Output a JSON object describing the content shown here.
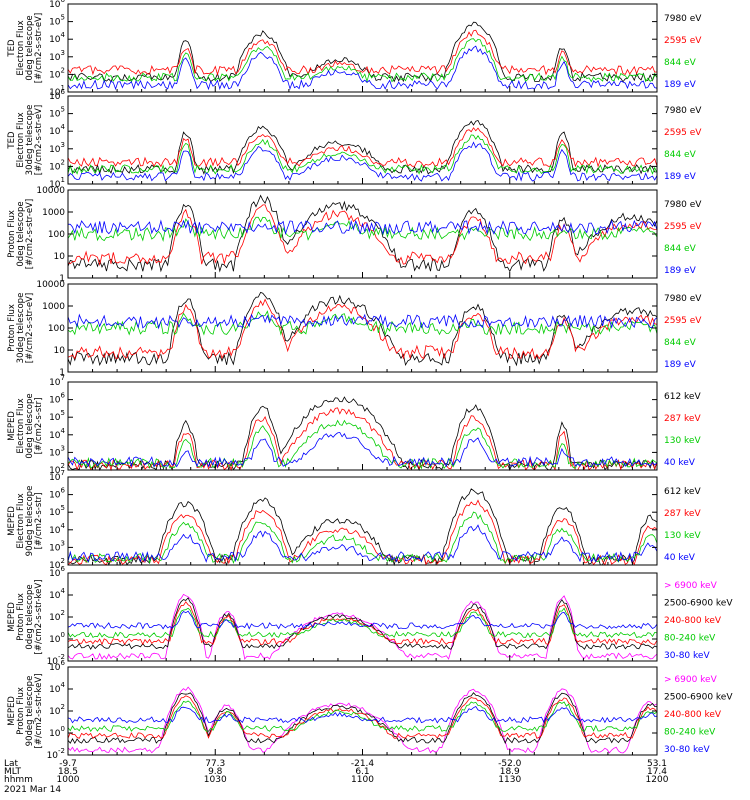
{
  "chart_data": [
    {
      "type": "line",
      "ylabel": "TED\nElectron Flux\n0deg telescope\n[#/cm2-s-str-eV]",
      "yscale": "log",
      "ytick_labels": [
        "10^1",
        "10^2",
        "10^3",
        "10^4",
        "10^5",
        "10^6"
      ],
      "ylim_exp": [
        0,
        6
      ],
      "series": [
        {
          "name": "7980 eV",
          "color": "#000000",
          "level": 1.0
        },
        {
          "name": "2595 eV",
          "color": "#ff0000",
          "level": 1.5
        },
        {
          "name": "844 eV",
          "color": "#00cc00",
          "level": 1.0
        },
        {
          "name": "189 eV",
          "color": "#0000ff",
          "level": 0.5
        }
      ],
      "features": [
        {
          "x": 0.2,
          "w": 0.012,
          "peak": 3.5
        },
        {
          "x": 0.33,
          "w": 0.03,
          "peak": 4.0
        },
        {
          "x": 0.46,
          "w": 0.06,
          "peak": 2.2
        },
        {
          "x": 0.69,
          "w": 0.03,
          "peak": 4.6
        },
        {
          "x": 0.84,
          "w": 0.012,
          "peak": 3.0
        }
      ]
    },
    {
      "type": "line",
      "ylabel": "TED\nElectron Flux\n30deg telescope\n[#/cm2-s-str-eV]",
      "yscale": "log",
      "ytick_labels": [
        "10^1",
        "10^2",
        "10^3",
        "10^4",
        "10^5",
        "10^6"
      ],
      "ylim_exp": [
        0,
        6
      ],
      "series": [
        {
          "name": "7980 eV",
          "color": "#000000",
          "level": 1.0
        },
        {
          "name": "2595 eV",
          "color": "#ff0000",
          "level": 1.5
        },
        {
          "name": "844 eV",
          "color": "#00cc00",
          "level": 1.0
        },
        {
          "name": "189 eV",
          "color": "#0000ff",
          "level": 0.5
        }
      ],
      "features": [
        {
          "x": 0.2,
          "w": 0.012,
          "peak": 3.5
        },
        {
          "x": 0.33,
          "w": 0.03,
          "peak": 3.8
        },
        {
          "x": 0.46,
          "w": 0.065,
          "peak": 2.8
        },
        {
          "x": 0.69,
          "w": 0.03,
          "peak": 4.2
        },
        {
          "x": 0.84,
          "w": 0.012,
          "peak": 3.4
        }
      ]
    },
    {
      "type": "line",
      "ylabel": "Proton Flux\n0deg telescope\n[#/cm2-s-str-eV]",
      "yscale": "log",
      "ytick_labels": [
        "1",
        "10",
        "100",
        "1000",
        "10000"
      ],
      "ylim_exp": [
        0,
        4
      ],
      "series": [
        {
          "name": "7980 eV",
          "color": "#000000",
          "level": 0.6
        },
        {
          "name": "2595 eV",
          "color": "#ff0000",
          "level": 0.9
        },
        {
          "name": "844 eV",
          "color": "#00cc00",
          "level": 2.0
        },
        {
          "name": "189 eV",
          "color": "#0000ff",
          "level": 2.3
        }
      ],
      "features": [
        {
          "x": 0.2,
          "w": 0.02,
          "peak": 3.3
        },
        {
          "x": 0.33,
          "w": 0.03,
          "peak": 3.6
        },
        {
          "x": 0.46,
          "w": 0.07,
          "peak": 3.3
        },
        {
          "x": 0.69,
          "w": 0.03,
          "peak": 3.0
        },
        {
          "x": 0.84,
          "w": 0.02,
          "peak": 2.6
        },
        {
          "x": 0.96,
          "w": 0.08,
          "peak": 2.8
        }
      ]
    },
    {
      "type": "line",
      "ylabel": "Proton Flux\n30deg telescope\n[#/cm2-s-str-eV]",
      "yscale": "log",
      "ytick_labels": [
        "1",
        "10",
        "100",
        "1000",
        "10000"
      ],
      "ylim_exp": [
        0,
        4
      ],
      "series": [
        {
          "name": "7980 eV",
          "color": "#000000",
          "level": 0.6
        },
        {
          "name": "2595 eV",
          "color": "#ff0000",
          "level": 0.9
        },
        {
          "name": "844 eV",
          "color": "#00cc00",
          "level": 2.0
        },
        {
          "name": "189 eV",
          "color": "#0000ff",
          "level": 2.3
        }
      ],
      "features": [
        {
          "x": 0.2,
          "w": 0.02,
          "peak": 3.3
        },
        {
          "x": 0.33,
          "w": 0.03,
          "peak": 3.6
        },
        {
          "x": 0.46,
          "w": 0.07,
          "peak": 3.3
        },
        {
          "x": 0.69,
          "w": 0.03,
          "peak": 3.0
        },
        {
          "x": 0.84,
          "w": 0.02,
          "peak": 2.6
        },
        {
          "x": 0.96,
          "w": 0.08,
          "peak": 2.8
        }
      ]
    },
    {
      "type": "line",
      "ylabel": "MEPED\nElectron Flux\n0deg telescope\n[#/cm2-s-str]",
      "yscale": "log",
      "ytick_labels": [
        "10^2",
        "10^3",
        "10^4",
        "10^5",
        "10^6",
        "10^7"
      ],
      "ylim_exp": [
        1.7,
        7
      ],
      "series": [
        {
          "name": "612 keV",
          "color": "#000000",
          "level": 2.0
        },
        {
          "name": "287 keV",
          "color": "#ff0000",
          "level": 2.0
        },
        {
          "name": "130 keV",
          "color": "#00cc00",
          "level": 2.1
        },
        {
          "name": "40 keV",
          "color": "#0000ff",
          "level": 2.2
        }
      ],
      "features": [
        {
          "x": 0.2,
          "w": 0.015,
          "peak": 4.5
        },
        {
          "x": 0.33,
          "w": 0.02,
          "peak": 5.5
        },
        {
          "x": 0.46,
          "w": 0.06,
          "peak": 6.0
        },
        {
          "x": 0.69,
          "w": 0.025,
          "peak": 5.5
        },
        {
          "x": 0.84,
          "w": 0.01,
          "peak": 4.5
        }
      ]
    },
    {
      "type": "line",
      "ylabel": "MEPED\nElectron Flux\n90deg telescope\n[#/cm2-s-str]",
      "yscale": "log",
      "ytick_labels": [
        "10^2",
        "10^3",
        "10^4",
        "10^5",
        "10^6",
        "10^7"
      ],
      "ylim_exp": [
        1.7,
        7
      ],
      "series": [
        {
          "name": "612 keV",
          "color": "#000000",
          "level": 2.0
        },
        {
          "name": "287 keV",
          "color": "#ff0000",
          "level": 2.0
        },
        {
          "name": "130 keV",
          "color": "#00cc00",
          "level": 2.1
        },
        {
          "name": "40 keV",
          "color": "#0000ff",
          "level": 2.2
        }
      ],
      "features": [
        {
          "x": 0.2,
          "w": 0.03,
          "peak": 5.4
        },
        {
          "x": 0.33,
          "w": 0.03,
          "peak": 5.6
        },
        {
          "x": 0.46,
          "w": 0.06,
          "peak": 4.4
        },
        {
          "x": 0.69,
          "w": 0.03,
          "peak": 6.2
        },
        {
          "x": 0.84,
          "w": 0.025,
          "peak": 5.1
        },
        {
          "x": 0.99,
          "w": 0.02,
          "peak": 4.6
        }
      ]
    },
    {
      "type": "line",
      "ylabel": "MEPED\nProton Flux\n0deg telescope\n[#/cm2-s-str-keV]",
      "yscale": "log",
      "ytick_labels": [
        "10^-2",
        "10^0",
        "10^2",
        "10^4",
        "10^6"
      ],
      "ylim_exp": [
        -3,
        6
      ],
      "series": [
        {
          "name": "> 6900 keV",
          "color": "#ff00ff",
          "level": -2.5
        },
        {
          "name": "2500-6900 keV",
          "color": "#000000",
          "level": -1.5
        },
        {
          "name": "240-800 keV",
          "color": "#ff0000",
          "level": -1.0
        },
        {
          "name": "80-240 keV",
          "color": "#00cc00",
          "level": -0.3
        },
        {
          "name": "30-80 keV",
          "color": "#0000ff",
          "level": 0.6
        }
      ],
      "features": [
        {
          "x": 0.2,
          "w": 0.015,
          "peak": 3.8
        },
        {
          "x": 0.27,
          "w": 0.015,
          "peak": 2.0
        },
        {
          "x": 0.46,
          "w": 0.06,
          "peak": 1.8
        },
        {
          "x": 0.69,
          "w": 0.02,
          "peak": 3.0
        },
        {
          "x": 0.84,
          "w": 0.012,
          "peak": 3.6
        }
      ]
    },
    {
      "type": "line",
      "ylabel": "MEPED\nProton Flux\n90deg telescope\n[#/cm2-s-str-keV]",
      "yscale": "log",
      "ytick_labels": [
        "10^-2",
        "10^0",
        "10^2",
        "10^4",
        "10^6"
      ],
      "ylim_exp": [
        -3,
        6
      ],
      "series": [
        {
          "name": "> 6900 keV",
          "color": "#ff00ff",
          "level": -2.5
        },
        {
          "name": "2500-6900 keV",
          "color": "#000000",
          "level": -1.5
        },
        {
          "name": "240-800 keV",
          "color": "#ff0000",
          "level": -1.0
        },
        {
          "name": "80-240 keV",
          "color": "#00cc00",
          "level": -0.3
        },
        {
          "name": "30-80 keV",
          "color": "#0000ff",
          "level": 0.6
        }
      ],
      "features": [
        {
          "x": 0.2,
          "w": 0.02,
          "peak": 3.8
        },
        {
          "x": 0.27,
          "w": 0.02,
          "peak": 2.0
        },
        {
          "x": 0.46,
          "w": 0.06,
          "peak": 2.2
        },
        {
          "x": 0.69,
          "w": 0.025,
          "peak": 3.6
        },
        {
          "x": 0.84,
          "w": 0.02,
          "peak": 3.6
        },
        {
          "x": 0.99,
          "w": 0.02,
          "peak": 2.4
        }
      ]
    }
  ],
  "xaxis": {
    "row_labels": [
      "Lat",
      "MLT",
      "hhmm"
    ],
    "ticks": [
      {
        "pos": 0.0,
        "lat": "-9.7",
        "mlt": "18.5",
        "hhmm": "1000"
      },
      {
        "pos": 0.25,
        "lat": "77.3",
        "mlt": "9.8",
        "hhmm": "1030"
      },
      {
        "pos": 0.5,
        "lat": "-21.4",
        "mlt": "6.1",
        "hhmm": "1100"
      },
      {
        "pos": 0.75,
        "lat": "-52.0",
        "mlt": "18.9",
        "hhmm": "1130"
      },
      {
        "pos": 1.0,
        "lat": "53.1",
        "mlt": "17.4",
        "hhmm": "1200"
      }
    ],
    "date": "2021 Mar 14"
  }
}
